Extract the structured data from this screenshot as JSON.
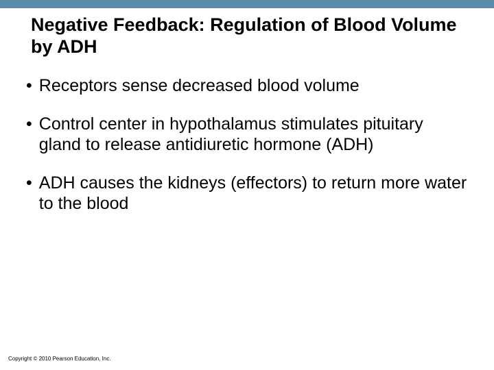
{
  "header": {
    "bar_color": "#5a8bab"
  },
  "title": "Negative Feedback: Regulation of Blood Volume by ADH",
  "bullets": [
    {
      "text": "Receptors sense decreased blood volume"
    },
    {
      "text": "Control center in hypothalamus stimulates pituitary gland to release antidiuretic hormone (ADH)"
    },
    {
      "text": "ADH causes the kidneys (effectors) to return more water to the blood"
    }
  ],
  "copyright": "Copyright © 2010 Pearson Education, Inc.",
  "styles": {
    "background_color": "#ffffff",
    "title_color": "#000000",
    "title_fontsize": 27,
    "body_fontsize": 25,
    "body_color": "#000000",
    "copyright_fontsize": 8
  }
}
